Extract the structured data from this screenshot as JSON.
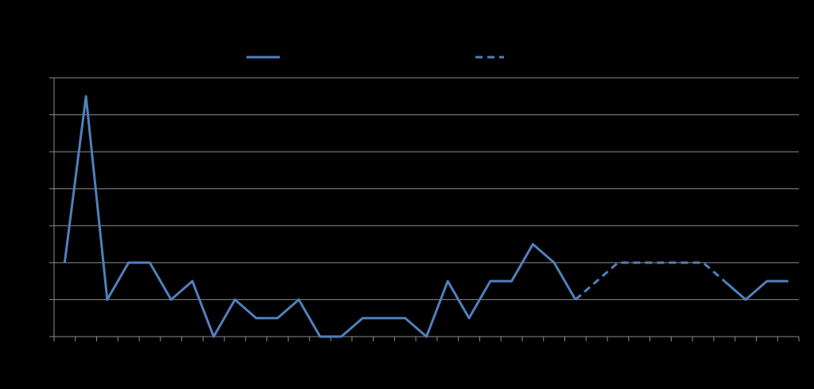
{
  "chart_data": {
    "type": "line",
    "categories": [
      null,
      null,
      null,
      null,
      null,
      null,
      null,
      null,
      null,
      null,
      null,
      null,
      null,
      null,
      null,
      null,
      null,
      null,
      null,
      null,
      null,
      null,
      null,
      null,
      null,
      null,
      null,
      null,
      null,
      null,
      null,
      null,
      null,
      null,
      null
    ],
    "series": [
      {
        "color": "#4f81bd",
        "dashed": false,
        "values": [
          2,
          6.5,
          1,
          2,
          2,
          1,
          1.5,
          0,
          1,
          0.5,
          0.5,
          1,
          0,
          0,
          0.5,
          0.5,
          0.5,
          0,
          1.5,
          0.5,
          1.5,
          1.5,
          2.5,
          2,
          1,
          null,
          null,
          null,
          null,
          null,
          null,
          1.5,
          1,
          1.5,
          1.5
        ]
      },
      {
        "color": "#4f81bd",
        "dashed": true,
        "values": [
          null,
          null,
          null,
          null,
          null,
          null,
          null,
          null,
          null,
          null,
          null,
          null,
          null,
          null,
          null,
          null,
          null,
          null,
          null,
          null,
          null,
          null,
          null,
          null,
          1,
          1.5,
          2,
          2,
          2,
          2,
          2,
          1.5,
          null,
          null,
          null
        ]
      }
    ],
    "ylim": [
      0,
      7
    ],
    "yticks": [
      0,
      1,
      2,
      3,
      4,
      5,
      6,
      7
    ],
    "grid": true
  }
}
